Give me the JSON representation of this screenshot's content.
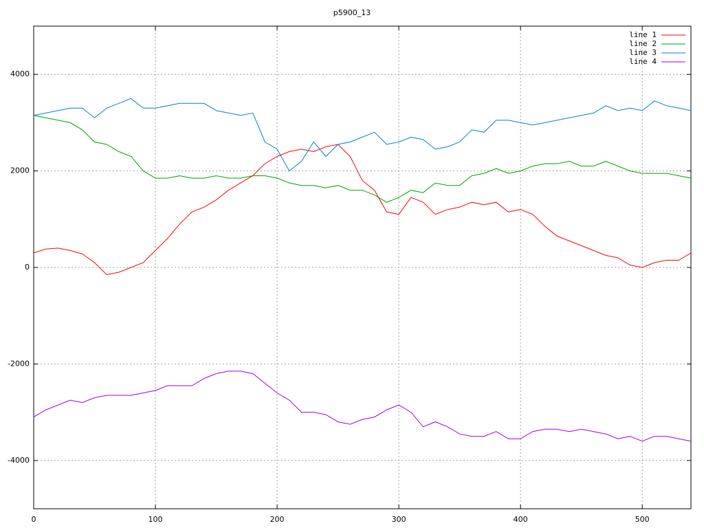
{
  "chart_data": {
    "type": "line",
    "title": "p5900_13",
    "x": [
      0,
      10,
      20,
      30,
      40,
      50,
      60,
      70,
      80,
      90,
      100,
      110,
      120,
      130,
      140,
      150,
      160,
      170,
      180,
      190,
      200,
      210,
      220,
      230,
      240,
      250,
      260,
      270,
      280,
      290,
      300,
      310,
      320,
      330,
      340,
      350,
      360,
      370,
      380,
      390,
      400,
      410,
      420,
      430,
      440,
      450,
      460,
      470,
      480,
      490,
      500,
      510,
      520,
      530,
      540
    ],
    "series": [
      {
        "name": "line 1",
        "color": "#ff0000",
        "values": [
          300,
          380,
          400,
          350,
          280,
          100,
          -150,
          -100,
          0,
          100,
          350,
          600,
          900,
          1150,
          1250,
          1400,
          1600,
          1750,
          1900,
          2150,
          2300,
          2400,
          2450,
          2400,
          2500,
          2550,
          2300,
          1800,
          1600,
          1150,
          1100,
          1450,
          1350,
          1100,
          1200,
          1250,
          1350,
          1300,
          1350,
          1150,
          1200,
          1100,
          850,
          650,
          550,
          450,
          350,
          250,
          200,
          50,
          0,
          100,
          150,
          150,
          300
        ]
      },
      {
        "name": "line 2",
        "color": "#00a000",
        "values": [
          3150,
          3100,
          3050,
          3000,
          2850,
          2600,
          2550,
          2400,
          2300,
          2000,
          1850,
          1850,
          1900,
          1850,
          1850,
          1900,
          1850,
          1850,
          1900,
          1900,
          1850,
          1750,
          1700,
          1700,
          1650,
          1700,
          1600,
          1600,
          1500,
          1350,
          1450,
          1600,
          1550,
          1750,
          1700,
          1700,
          1900,
          1950,
          2050,
          1950,
          2000,
          2100,
          2150,
          2150,
          2200,
          2100,
          2100,
          2200,
          2100,
          2000,
          1950,
          1950,
          1950,
          1900,
          1850
        ]
      },
      {
        "name": "line 3",
        "color": "#0080d0",
        "values": [
          3150,
          3200,
          3250,
          3300,
          3300,
          3100,
          3300,
          3400,
          3500,
          3300,
          3300,
          3350,
          3400,
          3400,
          3400,
          3250,
          3200,
          3150,
          3200,
          2600,
          2450,
          2000,
          2200,
          2600,
          2300,
          2550,
          2600,
          2700,
          2800,
          2550,
          2600,
          2700,
          2650,
          2450,
          2500,
          2600,
          2850,
          2800,
          3050,
          3050,
          3000,
          2950,
          3000,
          3050,
          3100,
          3150,
          3200,
          3350,
          3250,
          3300,
          3250,
          3450,
          3350,
          3300,
          3250
        ]
      },
      {
        "name": "line 4",
        "color": "#a000d0",
        "values": [
          -3100,
          -2950,
          -2850,
          -2750,
          -2800,
          -2700,
          -2650,
          -2650,
          -2650,
          -2600,
          -2550,
          -2450,
          -2450,
          -2450,
          -2300,
          -2200,
          -2150,
          -2150,
          -2200,
          -2400,
          -2600,
          -2750,
          -3000,
          -3000,
          -3050,
          -3200,
          -3250,
          -3150,
          -3100,
          -2950,
          -2850,
          -3000,
          -3300,
          -3200,
          -3300,
          -3450,
          -3500,
          -3500,
          -3400,
          -3550,
          -3550,
          -3400,
          -3350,
          -3350,
          -3400,
          -3350,
          -3400,
          -3450,
          -3550,
          -3500,
          -3600,
          -3500,
          -3500,
          -3550,
          -3600
        ]
      }
    ],
    "xlim": [
      0,
      540
    ],
    "ylim": [
      -5000,
      5000
    ],
    "xticks": [
      0,
      100,
      200,
      300,
      400,
      500
    ],
    "yticks": [
      -4000,
      -2000,
      0,
      2000,
      4000
    ],
    "grid": true,
    "legend": "top-right"
  }
}
